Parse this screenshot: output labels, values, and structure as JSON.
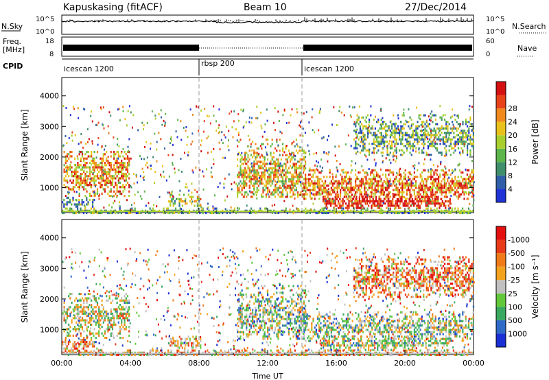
{
  "header": {
    "station": "Kapuskasing (fitACF)",
    "beam": "Beam 10",
    "date": "27/Dec/2014"
  },
  "strips": {
    "nsky_label": "N.Sky",
    "nsky_ticks": [
      "10^5",
      "10^0"
    ],
    "nsearch_label": "N.Search",
    "nsearch_ticks": [
      "10^5",
      "10^0"
    ],
    "freq_label": "Freq.",
    "freq_unit": "[MHz]",
    "freq_ticks": [
      "18",
      "8"
    ],
    "nave_label": "Nave",
    "nave_ticks": [
      "60",
      "0"
    ],
    "cpid_label": "CPID",
    "cpid_segments": [
      {
        "label": "icescan 1200",
        "start_h": 0,
        "end_h": 8
      },
      {
        "label": "rbsp 200",
        "start_h": 8,
        "end_h": 14
      },
      {
        "label": "icescan 1200",
        "start_h": 14,
        "end_h": 24
      }
    ]
  },
  "chart_data": [
    {
      "type": "heatmap",
      "name": "power",
      "ylabel": "Slant Range [km]",
      "yticks": [
        "1000",
        "2000",
        "3000",
        "4000"
      ],
      "ylim": [
        180,
        4600
      ],
      "xlim_hours": [
        0,
        24
      ],
      "colorbar_label": "Power [dB]",
      "colorbar_ticks": [
        "4",
        "8",
        "12",
        "16",
        "20",
        "24",
        "28"
      ],
      "colorbar_colors": [
        "#1f33d6",
        "#2e5fa8",
        "#3f8f6a",
        "#5bb54a",
        "#a9cf2e",
        "#e8c21a",
        "#f08a1e",
        "#e8421a",
        "#d41010"
      ],
      "echo_regions": [
        {
          "t0": 0.1,
          "t1": 3.9,
          "r0": 700,
          "r1": 2200,
          "center": 1500,
          "intensity": 0.7
        },
        {
          "t0": 0.0,
          "t1": 1.9,
          "r0": 300,
          "r1": 700,
          "center": 520,
          "intensity": 0.3
        },
        {
          "t0": 6.2,
          "t1": 8.1,
          "r0": 400,
          "r1": 800,
          "center": 600,
          "intensity": 0.5
        },
        {
          "t0": 10.2,
          "t1": 14.2,
          "r0": 700,
          "r1": 2600,
          "center": 1400,
          "intensity": 0.6
        },
        {
          "t0": 14.0,
          "t1": 24.0,
          "r0": 600,
          "r1": 1600,
          "center": 1100,
          "intensity": 0.75
        },
        {
          "t0": 15.2,
          "t1": 22.6,
          "r0": 300,
          "r1": 800,
          "center": 550,
          "intensity": 0.95
        },
        {
          "t0": 17.0,
          "t1": 24.0,
          "r0": 2100,
          "r1": 3400,
          "center": 2700,
          "intensity": 0.35
        },
        {
          "t0": 0.0,
          "t1": 24.0,
          "r0": 180,
          "r1": 420,
          "center": 250,
          "intensity": 0.35
        }
      ]
    },
    {
      "type": "heatmap",
      "name": "velocity",
      "ylabel": "Slant Range [km]",
      "yticks": [
        "1000",
        "2000",
        "3000",
        "4000"
      ],
      "ylim": [
        180,
        4600
      ],
      "xlim_hours": [
        0,
        24
      ],
      "xticks": [
        "00:00",
        "04:00",
        "08:00",
        "12:00",
        "16:00",
        "20:00",
        "00:00"
      ],
      "xlabel": "Time UT",
      "colorbar_label": "Velocity [m s⁻¹]",
      "colorbar_ticks": [
        "1000",
        "500",
        "100",
        "25",
        "-25",
        "-100",
        "-500",
        "-1000"
      ],
      "colorbar_colors": [
        "#1a2fd4",
        "#2e6ac8",
        "#3aa860",
        "#62c83a",
        "#c0c0c0",
        "#f3a21e",
        "#f07a18",
        "#e83a18",
        "#e41010"
      ],
      "echo_regions": [
        {
          "t0": 0.1,
          "t1": 3.9,
          "r0": 700,
          "r1": 2200,
          "center": 1500,
          "intensity": 0.5
        },
        {
          "t0": 0.0,
          "t1": 1.9,
          "r0": 300,
          "r1": 700,
          "center": 520,
          "intensity": 0.7
        },
        {
          "t0": 6.2,
          "t1": 8.1,
          "r0": 400,
          "r1": 800,
          "center": 600,
          "intensity": 0.6
        },
        {
          "t0": 10.2,
          "t1": 14.2,
          "r0": 700,
          "r1": 2600,
          "center": 1400,
          "intensity": 0.4
        },
        {
          "t0": 14.0,
          "t1": 24.0,
          "r0": 600,
          "r1": 1600,
          "center": 1100,
          "intensity": 0.4
        },
        {
          "t0": 15.2,
          "t1": 22.6,
          "r0": 300,
          "r1": 800,
          "center": 550,
          "intensity": 0.45
        },
        {
          "t0": 17.0,
          "t1": 24.0,
          "r0": 2100,
          "r1": 3400,
          "center": 2700,
          "intensity": 0.7
        },
        {
          "t0": 0.0,
          "t1": 24.0,
          "r0": 180,
          "r1": 420,
          "center": 250,
          "intensity": 0.6
        }
      ]
    }
  ]
}
